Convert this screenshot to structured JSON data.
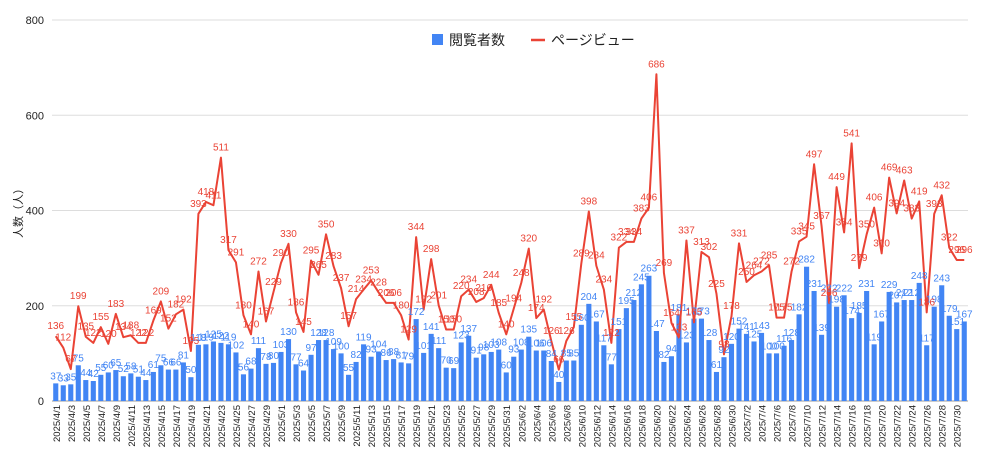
{
  "chart_data": {
    "type": "bar",
    "ylabel": "人数（人）",
    "ylim": [
      0,
      800
    ],
    "yticks": [
      0,
      200,
      400,
      600,
      800
    ],
    "grid": true,
    "legend_position": "top-center",
    "x": [
      "2025/4/1",
      "2025/4/2",
      "2025/4/3",
      "2025/4/4",
      "2025/4/5",
      "2025/4/6",
      "2025/4/7",
      "2025/4/8",
      "2025/4/9",
      "2025/4/10",
      "2025/4/11",
      "2025/4/12",
      "2025/4/13",
      "2025/4/14",
      "2025/4/15",
      "2025/4/16",
      "2025/4/17",
      "2025/4/18",
      "2025/4/19",
      "2025/4/20",
      "2025/4/21",
      "2025/4/22",
      "2025/4/23",
      "2025/4/24",
      "2025/4/25",
      "2025/4/26",
      "2025/4/27",
      "2025/4/28",
      "2025/4/29",
      "2025/4/30",
      "2025/5/1",
      "2025/5/2",
      "2025/5/3",
      "2025/5/4",
      "2025/5/5",
      "2025/5/6",
      "2025/5/7",
      "2025/5/8",
      "2025/5/9",
      "2025/5/10",
      "2025/5/11",
      "2025/5/12",
      "2025/5/13",
      "2025/5/14",
      "2025/5/15",
      "2025/5/16",
      "2025/5/17",
      "2025/5/18",
      "2025/5/19",
      "2025/5/20",
      "2025/5/21",
      "2025/5/22",
      "2025/5/23",
      "2025/5/24",
      "2025/5/25",
      "2025/5/26",
      "2025/5/27",
      "2025/5/28",
      "2025/5/29",
      "2025/5/30",
      "2025/5/31",
      "2025/6/1",
      "2025/6/2",
      "2025/6/3",
      "2025/6/4",
      "2025/6/5",
      "2025/6/6",
      "2025/6/7",
      "2025/6/8",
      "2025/6/9",
      "2025/6/10",
      "2025/6/11",
      "2025/6/12",
      "2025/6/13",
      "2025/6/14",
      "2025/6/15",
      "2025/6/16",
      "2025/6/17",
      "2025/6/18",
      "2025/6/19",
      "2025/6/20",
      "2025/6/21",
      "2025/6/22",
      "2025/6/23",
      "2025/6/24",
      "2025/6/25",
      "2025/6/26",
      "2025/6/27",
      "2025/6/28",
      "2025/6/29",
      "2025/6/30",
      "2025/7/1",
      "2025/7/2",
      "2025/7/3",
      "2025/7/4",
      "2025/7/5",
      "2025/7/6",
      "2025/7/7",
      "2025/7/8",
      "2025/7/9",
      "2025/7/10",
      "2025/7/11",
      "2025/7/12",
      "2025/7/13",
      "2025/7/14",
      "2025/7/15",
      "2025/7/16",
      "2025/7/17",
      "2025/7/18",
      "2025/7/19",
      "2025/7/20",
      "2025/7/21",
      "2025/7/22",
      "2025/7/23",
      "2025/7/24",
      "2025/7/25",
      "2025/7/26",
      "2025/7/27",
      "2025/7/28",
      "2025/7/29",
      "2025/7/30",
      "2025/7/31"
    ],
    "xtick_labels": [
      "2025/4/1",
      "2025/4/3",
      "2025/4/5",
      "2025/4/7",
      "2025/4/9",
      "2025/4/11",
      "2025/4/13",
      "2025/4/15",
      "2025/4/17",
      "2025/4/19",
      "2025/4/21",
      "2025/4/23",
      "2025/4/25",
      "2025/4/27",
      "2025/4/29",
      "2025/5/1",
      "2025/5/3",
      "2025/5/5",
      "2025/5/7",
      "2025/5/9",
      "2025/5/11",
      "2025/5/13",
      "2025/5/15",
      "2025/5/17",
      "2025/5/19",
      "2025/5/21",
      "2025/5/23",
      "2025/5/25",
      "2025/5/27",
      "2025/5/29",
      "2025/5/31",
      "2025/6/2",
      "2025/6/4",
      "2025/6/6",
      "2025/6/8",
      "2025/6/10",
      "2025/6/12",
      "2025/6/14",
      "2025/6/16",
      "2025/6/18",
      "2025/6/20",
      "2025/6/22",
      "2025/6/24",
      "2025/6/26",
      "2025/6/28",
      "2025/6/30",
      "2025/7/2",
      "2025/7/4",
      "2025/7/6",
      "2025/7/8",
      "2025/7/10",
      "2025/7/12",
      "2025/7/14",
      "2025/7/16",
      "2025/7/18",
      "2025/7/20",
      "2025/7/22",
      "2025/7/24",
      "2025/7/26",
      "2025/7/28",
      "2025/7/30"
    ],
    "series": [
      {
        "name": "閲覧者数",
        "kind": "bar",
        "color": "#4285f4",
        "values": [
          37,
          33,
          35,
          75,
          44,
          42,
          55,
          60,
          65,
          52,
          58,
          51,
          44,
          61,
          75,
          66,
          66,
          81,
          50,
          118,
          119,
          125,
          122,
          119,
          102,
          56,
          68,
          111,
          78,
          80,
          103,
          130,
          77,
          64,
          97,
          128,
          128,
          109,
          100,
          55,
          82,
          119,
          93,
          104,
          86,
          88,
          81,
          79,
          172,
          101,
          141,
          111,
          70,
          69,
          123,
          137,
          91,
          98,
          103,
          108,
          60,
          93,
          108,
          135,
          106,
          106,
          84,
          40,
          85,
          85,
          160,
          204,
          167,
          117,
          77,
          151,
          195,
          212,
          245,
          263,
          147,
          82,
          94,
          181,
          123,
          173,
          173,
          128,
          61,
          92,
          120,
          152,
          141,
          125,
          143,
          100,
          100,
          116,
          128,
          182,
          282,
          231,
          139,
          222,
          198,
          222,
          174,
          185,
          231,
          119,
          167,
          229,
          207,
          212,
          212,
          248,
          117,
          198,
          243,
          179,
          151,
          167
        ]
      },
      {
        "name": "ページビュー",
        "kind": "line",
        "color": "#ea4335",
        "values": [
          136,
          112,
          67,
          199,
          135,
          122,
          155,
          120,
          183,
          134,
          138,
          122,
          122,
          169,
          209,
          152,
          182,
          192,
          105,
          393,
          418,
          411,
          511,
          317,
          291,
          180,
          140,
          272,
          167,
          229,
          290,
          330,
          186,
          145,
          295,
          265,
          350,
          283,
          237,
          157,
          214,
          234,
          253,
          228,
          206,
          206,
          180,
          129,
          344,
          192,
          298,
          201,
          150,
          150,
          220,
          234,
          208,
          216,
          244,
          185,
          140,
          194,
          248,
          320,
          174,
          192,
          126,
          66,
          126,
          155,
          289,
          398,
          284,
          234,
          122,
          322,
          334,
          334,
          383,
          406,
          686,
          269,
          164,
          133,
          337,
          165,
          313,
          302,
          225,
          98,
          178,
          331,
          250,
          264,
          272,
          285,
          175,
          175,
          272,
          335,
          345,
          497,
          367,
          206,
          449,
          354,
          541,
          279,
          350,
          406,
          310,
          469,
          394,
          463,
          383,
          419,
          186,
          393,
          432,
          322,
          296,
          296
        ]
      }
    ],
    "bar_data_labels": [
      "37",
      "33",
      "35",
      "75",
      "44",
      "42",
      "55",
      "60",
      "65",
      "52",
      "58",
      "51",
      "44",
      "61",
      "75",
      "66",
      "66",
      "81",
      "50",
      "118",
      "119",
      "125",
      "122",
      "119",
      "102",
      "56",
      "68",
      "111",
      "78",
      "80",
      "103",
      "130",
      "77",
      "64",
      "97",
      "128",
      "128",
      "109",
      "100",
      "55",
      "82",
      "119",
      "93",
      "104",
      "86",
      "88",
      "81",
      "79",
      "172",
      "101",
      "141",
      "111",
      "70",
      "69",
      "123",
      "137",
      "91",
      "98",
      "103",
      "108",
      "60",
      "93",
      "108",
      "135",
      "106",
      "106",
      "84",
      "40",
      "85",
      "85",
      "160",
      "204",
      "167",
      "117",
      "77",
      "151",
      "195",
      "212",
      "245",
      "263",
      "147",
      "82",
      "94",
      "181",
      "123",
      "173",
      "173",
      "128",
      "61",
      "92",
      "120",
      "152",
      "141",
      "125",
      "143",
      "100",
      "100",
      "116",
      "128",
      "182",
      "282",
      "231",
      "139",
      "222",
      "198",
      "222",
      "174",
      "185",
      "231",
      "119",
      "167",
      "229",
      "207",
      "212",
      "212",
      "248",
      "117",
      "198",
      "243",
      "179",
      "151",
      "167"
    ],
    "line_data_labels": [
      "136",
      "112",
      "67",
      "199",
      "135",
      "122",
      "155",
      "120",
      "183",
      "134",
      "138",
      "122",
      "122",
      "169",
      "209",
      "152",
      "182",
      "192",
      "105",
      "393",
      "418",
      "411",
      "511",
      "317",
      "291",
      "180",
      "140",
      "272",
      "167",
      "229",
      "290",
      "330",
      "186",
      "145",
      "295",
      "265",
      "350",
      "283",
      "237",
      "157",
      "214",
      "234",
      "253",
      "228",
      "206",
      "206",
      "180",
      "129",
      "344",
      "192",
      "298",
      "201",
      "150",
      "150",
      "220",
      "234",
      "208",
      "216",
      "244",
      "185",
      "140",
      "194",
      "248",
      "320",
      "174",
      "192",
      "126",
      "66",
      "126",
      "155",
      "289",
      "398",
      "284",
      "234",
      "122",
      "322",
      "334",
      "334",
      "383",
      "406",
      "686",
      "269",
      "164",
      "133",
      "337",
      "165",
      "313",
      "302",
      "225",
      "98",
      "178",
      "331",
      "250",
      "264",
      "272",
      "285",
      "175",
      "175",
      "272",
      "335",
      "345",
      "497",
      "367",
      "206",
      "449",
      "354",
      "541",
      "279",
      "350",
      "406",
      "310",
      "469",
      "394",
      "463",
      "383",
      "419",
      "186",
      "393",
      "432",
      "322",
      "296",
      "296"
    ]
  }
}
